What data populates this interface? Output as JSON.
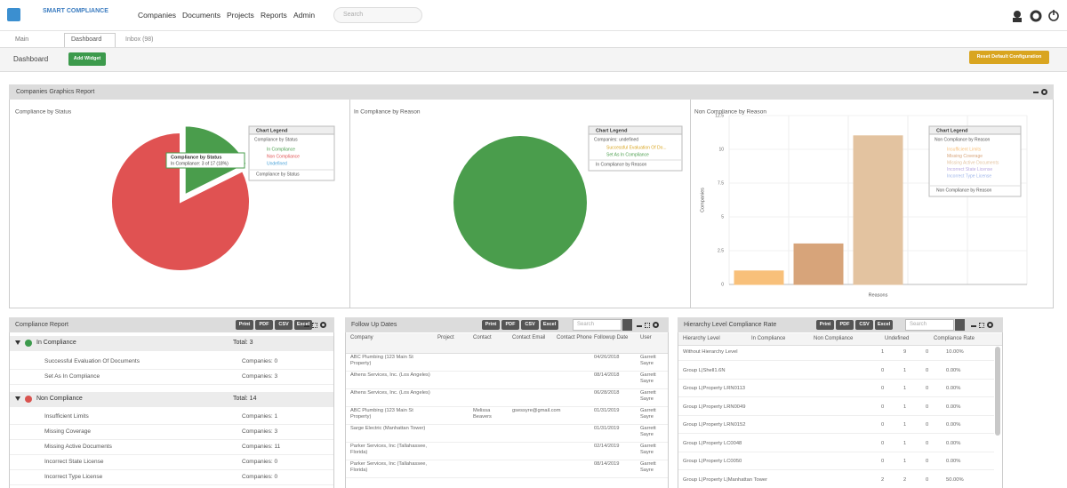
{
  "nav": {
    "brand": "SMART COMPLIANCE",
    "items": [
      "Companies",
      "Documents",
      "Projects",
      "Reports",
      "Admin"
    ],
    "search_placeholder": "Search"
  },
  "tabs": [
    "Main",
    "Dashboard",
    "Inbox (98)"
  ],
  "toolbar": {
    "title": "Dashboard",
    "add_widget": "Add Widget",
    "reset": "Reset Default Configuration"
  },
  "graphics_report": {
    "title": "Companies Graphics Report",
    "charts": [
      {
        "type": "pie",
        "title": "Compliance by Status",
        "categories": [
          "In Compliance",
          "Non Compliance",
          "Undefined"
        ],
        "values": [
          3,
          14,
          0
        ],
        "colors": [
          "#4a9d4c",
          "#e05252",
          "#4aa3d9"
        ],
        "tooltip": {
          "title": "Compliance by Status",
          "text": "In Compliance: 3 of 17 (18%)"
        },
        "legend": {
          "title": "Chart Legend",
          "header": "Compliance by Status",
          "footer": "Compliance by Status"
        }
      },
      {
        "type": "pie",
        "title": "In Compliance by Reason",
        "categories": [
          "Successful Evaluation Of Do...",
          "Set As In Compliance"
        ],
        "values": [
          0,
          3
        ],
        "colors": [
          "#d9a520",
          "#4a9d4c"
        ],
        "legend": {
          "title": "Chart Legend",
          "header": "Companies: undefined",
          "footer": "In Compliance by Reason"
        }
      },
      {
        "type": "bar",
        "title": "Non Compliance by Reason",
        "categories": [
          "Insufficient Limits",
          "Missing Coverage",
          "Missing Active Documents",
          "Incorrect State License",
          "Incorrect Type License"
        ],
        "values": [
          1,
          3,
          11,
          0,
          0
        ],
        "colors": [
          "#f8c07a",
          "#d7a47a",
          "#e3c3a0",
          "#b7a6e0",
          "#9fb6ea"
        ],
        "ylim": [
          0,
          12.5
        ],
        "yticks": [
          0,
          2.5,
          5,
          7.5,
          10,
          12.5
        ],
        "ylabel": "Companies",
        "xlabel": "Reasons",
        "legend": {
          "title": "Chart Legend",
          "header": "Non Compliance by Reason",
          "footer": "Non Compliance by Reason"
        }
      }
    ]
  },
  "compliance_report": {
    "title": "Compliance Report",
    "buttons": [
      "Print",
      "PDF",
      "CSV",
      "Excel"
    ],
    "groups": [
      {
        "name": "In Compliance",
        "total": "Total: 3",
        "rows": [
          [
            "Successful Evaluation Of Documents",
            "Companies: 0"
          ],
          [
            "Set As In Compliance",
            "Companies: 3"
          ]
        ]
      },
      {
        "name": "Non Compliance",
        "total": "Total: 14",
        "rows": [
          [
            "Insufficient Limits",
            "Companies: 1"
          ],
          [
            "Missing Coverage",
            "Companies: 3"
          ],
          [
            "Missing Active Documents",
            "Companies: 11"
          ],
          [
            "Incorrect State License",
            "Companies: 0"
          ],
          [
            "Incorrect Type License",
            "Companies: 0"
          ]
        ]
      }
    ]
  },
  "follow_up": {
    "title": "Follow Up Dates",
    "buttons": [
      "Print",
      "PDF",
      "CSV",
      "Excel"
    ],
    "search_placeholder": "Search",
    "columns": [
      "Company",
      "Project",
      "Contact",
      "Contact Email",
      "Contact Phone",
      "Followup Date",
      "User"
    ],
    "rows": [
      {
        "company": "ABC Plumbing (123 Main St Property)",
        "date": "04/26/2018",
        "user": "Garrett Sayre"
      },
      {
        "company": "Athens Services, Inc. (Los Angeles)",
        "date": "08/14/2018",
        "user": "Garrett Sayre"
      },
      {
        "company": "Athens Services, Inc. (Los Angeles)",
        "date": "06/28/2018",
        "user": "Garrett Sayre"
      },
      {
        "company": "ABC Plumbing (123 Main St Property)",
        "contact": "Melissa Beavers",
        "email": "gsessyre@gmail.com",
        "date": "01/31/2019",
        "user": "Garrett Sayre"
      },
      {
        "company": "Sarge Electric (Manhattan Tower)",
        "date": "01/31/2019",
        "user": "Garrett Sayre"
      },
      {
        "company": "Parker Services, Inc (Tallahassee, Florida)",
        "date": "02/14/2019",
        "user": "Garrett Sayre"
      },
      {
        "company": "Parker Services, Inc (Tallahassee, Florida)",
        "date": "08/14/2019",
        "user": "Garrett Sayre"
      }
    ]
  },
  "hierarchy": {
    "title": "Hierarchy Level Compliance Rate",
    "buttons": [
      "Print",
      "PDF",
      "CSV",
      "Excel"
    ],
    "search_placeholder": "Search",
    "columns": [
      "Hierarchy Level",
      "In Compliance",
      "Non Compliance",
      "Undefined",
      "Compliance Rate"
    ],
    "rows": [
      [
        "Without Hierarchy Level",
        1,
        9,
        0,
        "10.00%"
      ],
      [
        "Group L|Shell1.6N",
        0,
        1,
        0,
        "0.00%"
      ],
      [
        "Group L|Property LRN0113",
        0,
        1,
        0,
        "0.00%"
      ],
      [
        "Group L|Property LRN0049",
        0,
        1,
        0,
        "0.00%"
      ],
      [
        "Group L|Property LRN0152",
        0,
        1,
        0,
        "0.00%"
      ],
      [
        "Group L|Property LC0048",
        0,
        1,
        0,
        "0.00%"
      ],
      [
        "Group L|Property LC0050",
        0,
        1,
        0,
        "0.00%"
      ],
      [
        "Group L|Property L|Manhattan Tower",
        2,
        2,
        0,
        "50.00%"
      ]
    ]
  }
}
